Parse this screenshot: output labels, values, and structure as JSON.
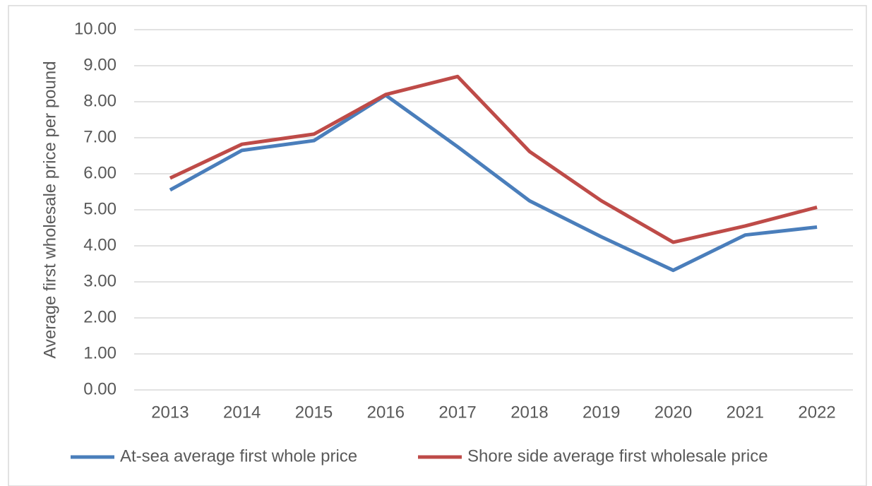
{
  "chart_data": {
    "type": "line",
    "ylabel": "Average first wholesale price per pound",
    "categories": [
      "2013",
      "2014",
      "2015",
      "2016",
      "2017",
      "2018",
      "2019",
      "2020",
      "2021",
      "2022"
    ],
    "series": [
      {
        "name": "At-sea average first whole price",
        "color": "#4a7ebb",
        "values": [
          5.55,
          6.65,
          6.92,
          8.18,
          6.75,
          5.25,
          4.25,
          3.32,
          4.3,
          4.52
        ]
      },
      {
        "name": "Shore side average first wholesale price",
        "color": "#be4b48",
        "values": [
          5.88,
          6.82,
          7.1,
          8.2,
          8.7,
          6.62,
          5.25,
          4.1,
          4.55,
          5.07
        ]
      }
    ],
    "ylim": [
      0,
      10
    ],
    "yticks": [
      {
        "value": 0,
        "label": "0.00"
      },
      {
        "value": 1,
        "label": "1.00"
      },
      {
        "value": 2,
        "label": "2.00"
      },
      {
        "value": 3,
        "label": "3.00"
      },
      {
        "value": 4,
        "label": "4.00"
      },
      {
        "value": 5,
        "label": "5.00"
      },
      {
        "value": 6,
        "label": "6.00"
      },
      {
        "value": 7,
        "label": "7.00"
      },
      {
        "value": 8,
        "label": "8.00"
      },
      {
        "value": 9,
        "label": "9.00"
      },
      {
        "value": 10,
        "label": "10.00"
      }
    ],
    "grid": true,
    "legend": "bottom"
  }
}
